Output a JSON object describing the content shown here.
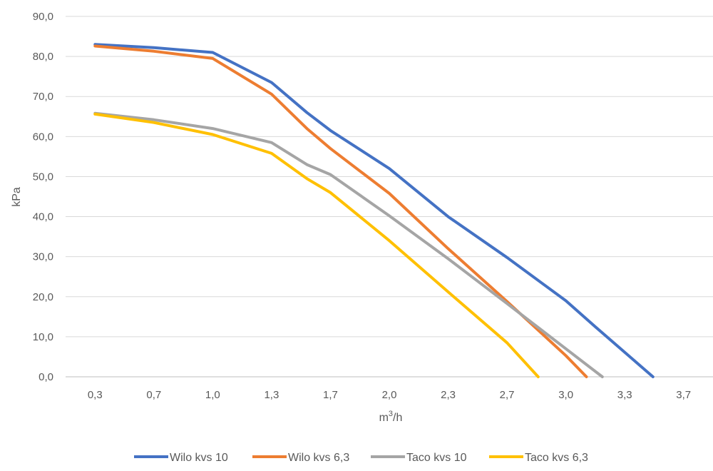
{
  "chart_data": {
    "type": "line",
    "title": "",
    "xlabel_base": "m",
    "xlabel_sup": "3",
    "xlabel_tail": "/h",
    "ylabel": "kPa",
    "ylim": [
      0,
      90
    ],
    "y_ticks": [
      "0,0",
      "10,0",
      "20,0",
      "30,0",
      "40,0",
      "50,0",
      "60,0",
      "70,0",
      "80,0",
      "90,0"
    ],
    "categories": [
      "0,3",
      "0,7",
      "1,0",
      "1,3",
      "1,7",
      "2,0",
      "2,3",
      "2,7",
      "3,0",
      "3,3",
      "3,7"
    ],
    "grid": true,
    "legend_position": "bottom",
    "series": [
      {
        "name": "Wilo kvs 10",
        "color": "#4472C4",
        "x": [
          0,
          1,
          2,
          3,
          3.6,
          4,
          5,
          6,
          7,
          8,
          8.5,
          9.48
        ],
        "y": [
          83,
          82.2,
          81,
          73.5,
          66,
          61.5,
          52,
          40,
          29.8,
          19,
          12.5,
          0
        ]
      },
      {
        "name": "Wilo kvs 6,3",
        "color": "#ED7D31",
        "x": [
          0,
          1,
          2,
          3,
          3.6,
          4,
          5,
          6,
          7,
          8,
          8.35
        ],
        "y": [
          82.6,
          81.3,
          79.5,
          70.6,
          62,
          57,
          45.8,
          32,
          18.8,
          5.3,
          0
        ]
      },
      {
        "name": "Taco kvs 10",
        "color": "#A5A5A5",
        "x": [
          0,
          1,
          2,
          3,
          3.6,
          4,
          5,
          6,
          7,
          8,
          8.62
        ],
        "y": [
          65.8,
          64.2,
          62,
          58.5,
          53,
          50.5,
          40.2,
          29.5,
          18.3,
          7,
          0
        ]
      },
      {
        "name": "Taco kvs 6,3",
        "color": "#FFC000",
        "x": [
          0,
          1,
          2,
          3,
          3.6,
          4,
          5,
          6,
          7,
          7.53
        ],
        "y": [
          65.6,
          63.5,
          60.5,
          55.8,
          49.5,
          46,
          34,
          21.2,
          8.5,
          0
        ]
      }
    ]
  }
}
